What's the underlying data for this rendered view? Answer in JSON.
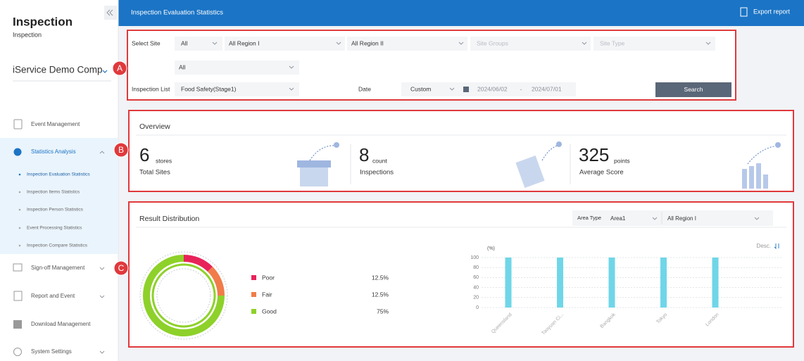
{
  "sidebar": {
    "title": "Inspection",
    "subtitle": "Inspection",
    "company": "iService Demo Comp",
    "menu": [
      {
        "label": "Event Management"
      },
      {
        "label": "Statistics Analysis",
        "children": [
          "Inspection Evaluation Statistics",
          "Inspection Items Statistics",
          "Inspection Person Statistics",
          "Event Processing Statistics",
          "Inspection Compare Statistics"
        ]
      },
      {
        "label": "Sign-off Management"
      },
      {
        "label": "Report and Event"
      },
      {
        "label": "Download Management"
      },
      {
        "label": "System Settings"
      }
    ]
  },
  "header": {
    "title": "Inspection Evaluation Statistics",
    "export": "Export report"
  },
  "filters": {
    "site_label": "Select Site",
    "site": "All",
    "region1": "All Region I",
    "region2": "All Region II",
    "site_groups": "Site Groups",
    "site_type": "Site Type",
    "sub": "All",
    "list_label": "Inspection List",
    "list": "Food Safety(Stage1)",
    "date_label": "Date",
    "date_mode": "Custom",
    "date_from": "2024/06/02",
    "date_sep": "-",
    "date_to": "2024/07/01",
    "search": "Search"
  },
  "callouts": [
    "A",
    "B",
    "C"
  ],
  "overview": {
    "title": "Overview",
    "stats": [
      {
        "value": 6,
        "unit": "stores",
        "label": "Total Sites"
      },
      {
        "value": 8,
        "unit": "count",
        "label": "Inspections"
      },
      {
        "value": 325,
        "unit": "points",
        "label": "Average Score"
      }
    ]
  },
  "result": {
    "title": "Result Distribution",
    "area_type_label": "Area Type",
    "area_type": "Area1",
    "region": "All Region I"
  },
  "chart_data": [
    {
      "type": "pie",
      "categories": [
        "Poor",
        "Fair",
        "Good"
      ],
      "values": [
        12.5,
        12.5,
        75
      ],
      "value_labels": [
        "12.5%",
        "12.5%",
        "75%"
      ],
      "colors": [
        "#e8235a",
        "#f07c4a",
        "#8ed12a"
      ]
    },
    {
      "type": "bar",
      "y_label": "(%)",
      "sort_label": "Desc.",
      "categories": [
        "Queensland",
        "Taoyuan Ci...",
        "Bangkok",
        "Tokyo",
        "London"
      ],
      "values": [
        100,
        100,
        100,
        100,
        100
      ],
      "color": "#6fd6e8",
      "ylim": [
        0,
        100
      ],
      "yticks": [
        0,
        20,
        40,
        60,
        80,
        100
      ],
      "grid": true
    }
  ]
}
